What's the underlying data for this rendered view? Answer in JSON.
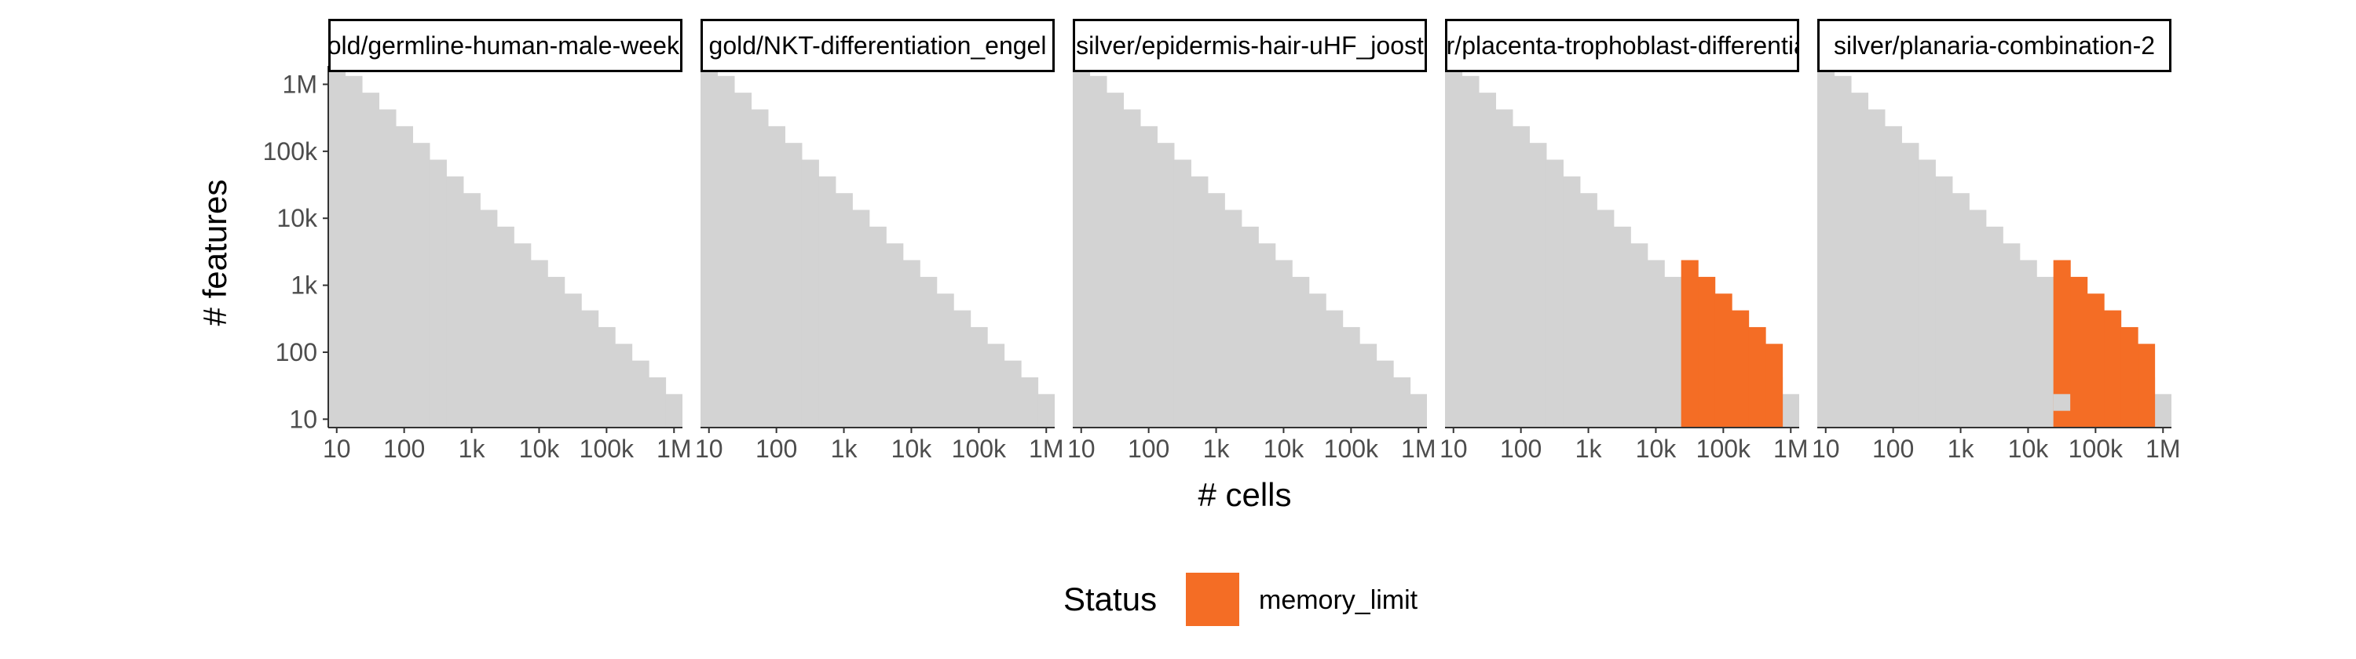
{
  "chart_data": {
    "type": "heatmap",
    "facet_label": "# cells",
    "xlabel": "# cells",
    "ylabel": "# features",
    "x_scale": "log10",
    "y_scale": "log10",
    "xlim": [
      10,
      1000000
    ],
    "ylim": [
      10,
      1000000
    ],
    "x_ticks": [
      {
        "value": 10,
        "label": "10"
      },
      {
        "value": 100,
        "label": "100"
      },
      {
        "value": 1000,
        "label": "1k"
      },
      {
        "value": 10000,
        "label": "10k"
      },
      {
        "value": 100000,
        "label": "100k"
      },
      {
        "value": 1000000,
        "label": "1M"
      }
    ],
    "y_ticks": [
      {
        "value": 10,
        "label": "10"
      },
      {
        "value": 100,
        "label": "100"
      },
      {
        "value": 1000,
        "label": "1k"
      },
      {
        "value": 10000,
        "label": "10k"
      },
      {
        "value": 100000,
        "label": "100k"
      },
      {
        "value": 1000000,
        "label": "1M"
      }
    ],
    "grid": false,
    "legend": {
      "title": "Status",
      "position": "bottom",
      "entries": [
        {
          "label": "memory_limit",
          "color": "#F46D25"
        }
      ]
    },
    "colors": {
      "background_cells": "#D3D3D3",
      "memory_limit": "#F46D25"
    },
    "cell_step_log10": 0.25,
    "staircase_note_max_total_log10": 7.25,
    "facets": [
      {
        "label": "gold/germline-human-male-weekly",
        "memory_limit_cells": []
      },
      {
        "label": "gold/NKT-differentiation_engel",
        "memory_limit_cells": []
      },
      {
        "label": "silver/epidermis-hair-uHF_joost",
        "memory_limit_cells": []
      },
      {
        "label": "silver/placenta-trophoblast-differentiation",
        "memory_limit_cells": [
          {
            "x_log10": 4.5,
            "y_max_log10": 3.25
          },
          {
            "x_log10": 4.75,
            "y_max_log10": 3.0
          },
          {
            "x_log10": 5.0,
            "y_max_log10": 2.75
          },
          {
            "x_log10": 5.25,
            "y_max_log10": 2.5
          },
          {
            "x_log10": 5.5,
            "y_max_log10": 2.25
          },
          {
            "x_log10": 5.75,
            "y_max_log10": 2.0
          }
        ]
      },
      {
        "label": "silver/planaria-combination-2",
        "memory_limit_cells": [
          {
            "x_log10": 4.5,
            "y_max_log10": 3.25,
            "gap_y_log10": 1.25
          },
          {
            "x_log10": 4.75,
            "y_max_log10": 3.0
          },
          {
            "x_log10": 5.0,
            "y_max_log10": 2.75
          },
          {
            "x_log10": 5.25,
            "y_max_log10": 2.5
          },
          {
            "x_log10": 5.5,
            "y_max_log10": 2.25
          },
          {
            "x_log10": 5.75,
            "y_max_log10": 2.0
          }
        ]
      }
    ]
  }
}
